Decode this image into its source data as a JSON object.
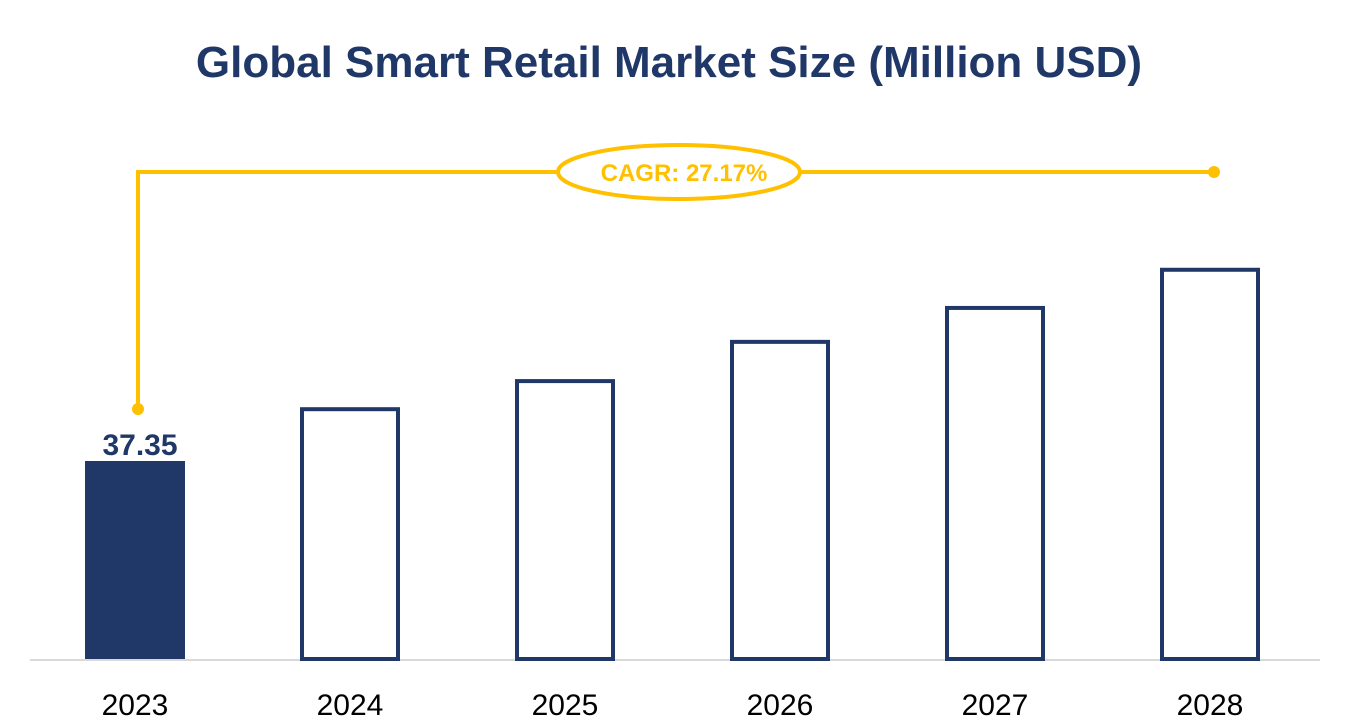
{
  "chart_data": {
    "type": "bar",
    "title": "Global Smart Retail Market Size (Million USD)",
    "categories": [
      "2023",
      "2024",
      "2025",
      "2026",
      "2027",
      "2028"
    ],
    "values": [
      37.35,
      47.5,
      52.8,
      60.2,
      66.6,
      73.8
    ],
    "data_labels": [
      "37.35",
      "",
      "",
      "",
      "",
      ""
    ],
    "annotation": "CAGR: 27.17%",
    "ylim": [
      0,
      80
    ],
    "grid": false,
    "colors": {
      "bar": "#1f3868",
      "annotation": "#ffc000",
      "axis": "#d9d9d9"
    }
  }
}
